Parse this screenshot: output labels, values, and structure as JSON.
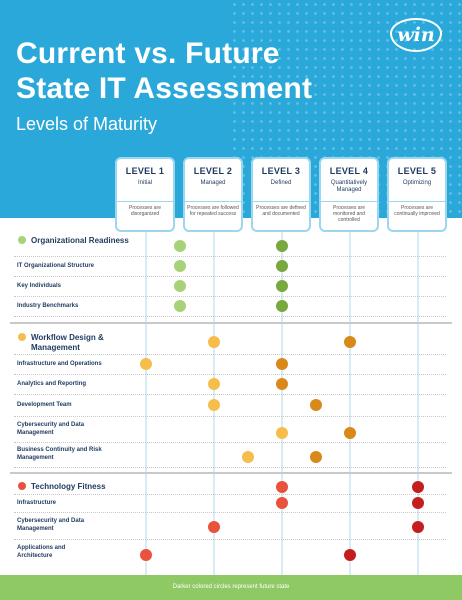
{
  "header": {
    "title_line1": "Current vs. Future",
    "title_line2": "State IT Assessment",
    "subtitle": "Levels of Maturity",
    "logo_text": "win"
  },
  "levels": [
    {
      "num": "LEVEL 1",
      "name": "Initial",
      "desc": "Processes are disorganized"
    },
    {
      "num": "LEVEL 2",
      "name": "Managed",
      "desc": "Processes are followed for repeated success"
    },
    {
      "num": "LEVEL 3",
      "name": "Defined",
      "desc": "Processes are defined and documented"
    },
    {
      "num": "LEVEL 4",
      "name": "Quantitatively Managed",
      "desc": "Processes are monitored and controlled"
    },
    {
      "num": "LEVEL 5",
      "name": "Optimizing",
      "desc": "Processes are continually improved"
    }
  ],
  "sections": [
    {
      "title": "Organizational Readiness",
      "colors": {
        "current": "#a8d27a",
        "future": "#79a83e"
      },
      "rows": [
        {
          "label": "Organizational Readiness",
          "current": 1.5,
          "future": 3
        },
        {
          "label": "IT Organizational Structure",
          "current": 1.5,
          "future": 3
        },
        {
          "label": "Key Individuals",
          "current": 1.5,
          "future": 3
        },
        {
          "label": "Industry Benchmarks",
          "current": 1.5,
          "future": 3
        }
      ]
    },
    {
      "title": "Workflow Design & Management",
      "colors": {
        "current": "#f6bd4b",
        "future": "#d9891a"
      },
      "rows": [
        {
          "label": "Workflow Design & Management",
          "current": 2,
          "future": 4
        },
        {
          "label": "Infrastructure and Operations",
          "current": 1,
          "future": 3
        },
        {
          "label": "Analytics and Reporting",
          "current": 2,
          "future": 3
        },
        {
          "label": "Development Team",
          "current": 2,
          "future": 3.5
        },
        {
          "label": "Cybersecurity and Data Management",
          "current": 3,
          "future": 4
        },
        {
          "label": "Business Continuity and Risk Management",
          "current": 2.5,
          "future": 3.5
        }
      ]
    },
    {
      "title": "Technology Fitness",
      "colors": {
        "current": "#e9523c",
        "future": "#c41d1d"
      },
      "rows": [
        {
          "label": "Technology Fitness",
          "current": 3,
          "future": 5
        },
        {
          "label": "Infrastructure",
          "current": 3,
          "future": 5
        },
        {
          "label": "Cybersecurity and Data Management",
          "current": 2,
          "future": 5
        },
        {
          "label": "Applications and Architecture",
          "current": 1,
          "future": 4
        }
      ]
    }
  ],
  "row_labels": {
    "org_1": "IT Organizational Structure",
    "org_2": "Key Individuals",
    "org_3": "Industry Benchmarks",
    "wf_1": "Infrastructure and Operations",
    "wf_2": "Analytics and Reporting",
    "wf_3": "Development Team",
    "wf_4": "Cybersecurity and Data Management",
    "wf_5": "Business Continuity and Risk Management",
    "tf_1": "Infrastructure",
    "tf_2": "Cybersecurity and Data Management",
    "tf_3": "Applications and Architecture"
  },
  "section_titles": {
    "org": "Organizational Readiness",
    "wf": "Workflow Design & Management",
    "tf": "Technology Fitness"
  },
  "footer": {
    "note": "Darker colored circles represent future state"
  }
}
